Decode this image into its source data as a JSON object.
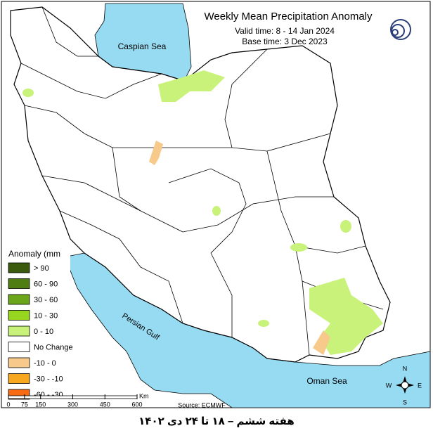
{
  "title": "Weekly Mean Precipitation Anomaly",
  "valid_time": "Valid time: 8 - 14 Jan 2024",
  "base_time": "Base time: 3 Dec 2023",
  "legend": {
    "title": "Anomaly (mm",
    "items": [
      {
        "label": "> 90",
        "color": "#3b5a0c"
      },
      {
        "label": "60 - 90",
        "color": "#4f7d12"
      },
      {
        "label": "30 - 60",
        "color": "#6aa51a"
      },
      {
        "label": "10 - 30",
        "color": "#96d61e"
      },
      {
        "label": "0 - 10",
        "color": "#c9f27a"
      },
      {
        "label": "No Change",
        "color": "#ffffff"
      },
      {
        "label": "-10 - 0",
        "color": "#f7c98a"
      },
      {
        "label": "-30 - -10",
        "color": "#f7a81e"
      },
      {
        "label": "-60 - -30",
        "color": "#f76a14"
      }
    ]
  },
  "seas": {
    "caspian": "Caspian Sea",
    "gulf": "Persian Gulf",
    "oman": "Oman Sea"
  },
  "scale": {
    "ticks": [
      "0",
      "75",
      "150",
      "300",
      "450",
      "600"
    ],
    "unit": "Km"
  },
  "compass": {
    "n": "N",
    "e": "E",
    "s": "S",
    "w": "W"
  },
  "source": "Source: ECMWF",
  "footer": "هفته ششم – ۱۸ تا ۲۴ دی ۱۴۰۲"
}
